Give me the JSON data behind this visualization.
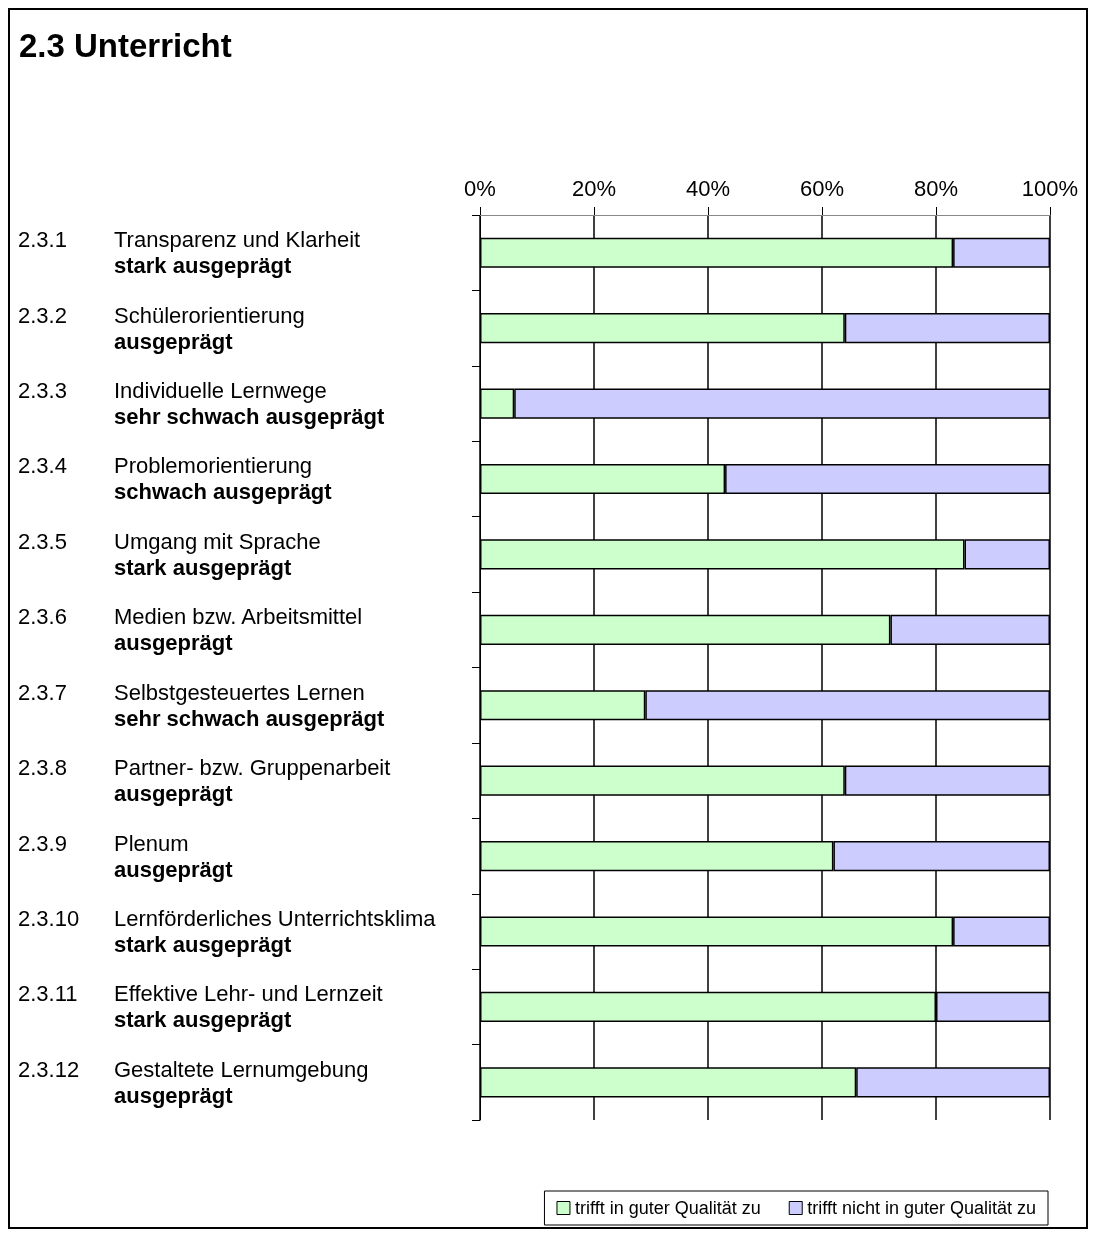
{
  "chart_data": {
    "type": "bar",
    "title": "2.3 Unterricht",
    "orientation": "horizontal",
    "stacked": true,
    "categories": [
      "2.3.1 Transparenz und Klarheit\nstark ausgeprägt",
      "2.3.2 Schülerorientierung\nausgeprägt",
      "2.3.3 Individuelle Lernwege\nsehr schwach ausgeprägt",
      "2.3.4 Problemorientierung\nschwach ausgeprägt",
      "2.3.5 Umgang mit Sprache\nstark ausgeprägt",
      "2.3.6 Medien bzw. Arbeitsmittel\nausgeprägt",
      "2.3.7 Selbstgesteuertes Lernen\nsehr schwach ausgeprägt",
      "2.3.8 Partner- bzw. Gruppenarbeit\nausgeprägt",
      "2.3.9 Plenum\nausgeprägt",
      "2.3.10 Lernförderliches Unterrichtsklima\nstark ausgeprägt",
      "2.3.11 Effektive Lehr- und Lernzeit\nstark ausgeprägt",
      "2.3.12 Gestaltete Lernumgebung\nausgeprägt"
    ],
    "series": [
      {
        "name": "trifft in guter Qualität zu",
        "color": "#ccffcc",
        "values": [
          83,
          64,
          6,
          43,
          85,
          72,
          29,
          64,
          62,
          83,
          80,
          66
        ]
      },
      {
        "name": "trifft nicht in guter Qualität zu",
        "color": "#ccccff",
        "values": [
          17,
          36,
          94,
          57,
          15,
          28,
          71,
          36,
          38,
          17,
          20,
          34
        ]
      }
    ],
    "xlim": [
      0,
      100
    ],
    "xticks": [
      {
        "value": 0,
        "label": "0%"
      },
      {
        "value": 20,
        "label": "20%"
      },
      {
        "value": 40,
        "label": "40%"
      },
      {
        "value": 60,
        "label": "60%"
      },
      {
        "value": 80,
        "label": "80%"
      },
      {
        "value": 100,
        "label": "100%"
      }
    ],
    "grid": "x",
    "legend": "bottom right"
  }
}
